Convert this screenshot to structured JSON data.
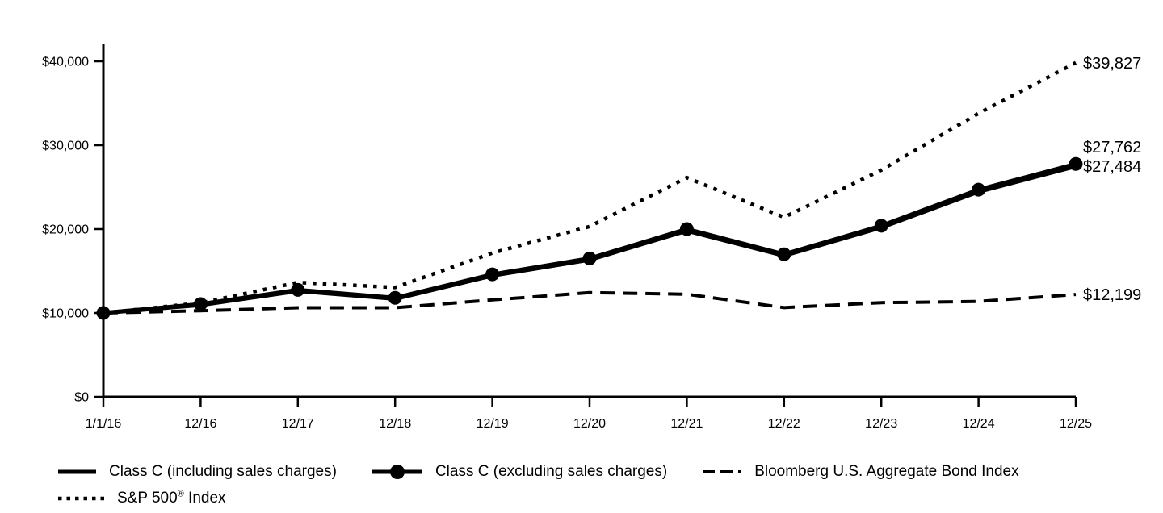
{
  "page": {
    "background": "#ffffff",
    "line_color": "#000000"
  },
  "chart_data": {
    "type": "line",
    "title": "",
    "x_categories": [
      "1/1/16",
      "12/16",
      "12/17",
      "12/18",
      "12/19",
      "12/20",
      "12/21",
      "12/22",
      "12/23",
      "12/24",
      "12/25"
    ],
    "y_axis": {
      "ticks": [
        0,
        10000,
        20000,
        30000,
        40000
      ],
      "tick_labels": [
        "$0",
        "$10,000",
        "$20,000",
        "$30,000",
        "$40,000"
      ],
      "range": [
        0,
        42000
      ]
    },
    "grid": "off",
    "legend_position": "bottom",
    "series": [
      {
        "name": "Class C (including sales charges)",
        "style": "solid",
        "marker": "none",
        "values": [
          10000,
          10949,
          12623,
          11682,
          14454,
          16335,
          19800,
          16830,
          20196,
          24453,
          27484
        ],
        "end_label": "$27,484"
      },
      {
        "name": "Class C (excluding sales charges)",
        "style": "solid",
        "marker": "circle",
        "values": [
          10000,
          11060,
          12750,
          11800,
          14600,
          16500,
          20000,
          17000,
          20400,
          24700,
          27762
        ],
        "end_label": "$27,762"
      },
      {
        "name": "Bloomberg U.S. Aggregate Bond Index",
        "style": "dashed",
        "marker": "none",
        "values": [
          10000,
          10265,
          10628,
          10629,
          11556,
          12424,
          12233,
          10641,
          11230,
          11370,
          12199
        ],
        "end_label": "$12,199"
      },
      {
        "name": "S&P 500® Index",
        "style": "dotted",
        "marker": "none",
        "values": [
          10000,
          11196,
          13640,
          13043,
          17150,
          20306,
          26136,
          21403,
          27030,
          33793,
          39827
        ],
        "end_label": "$39,827"
      }
    ],
    "legend_rows": [
      [
        0,
        1,
        2
      ],
      [
        3
      ]
    ]
  }
}
